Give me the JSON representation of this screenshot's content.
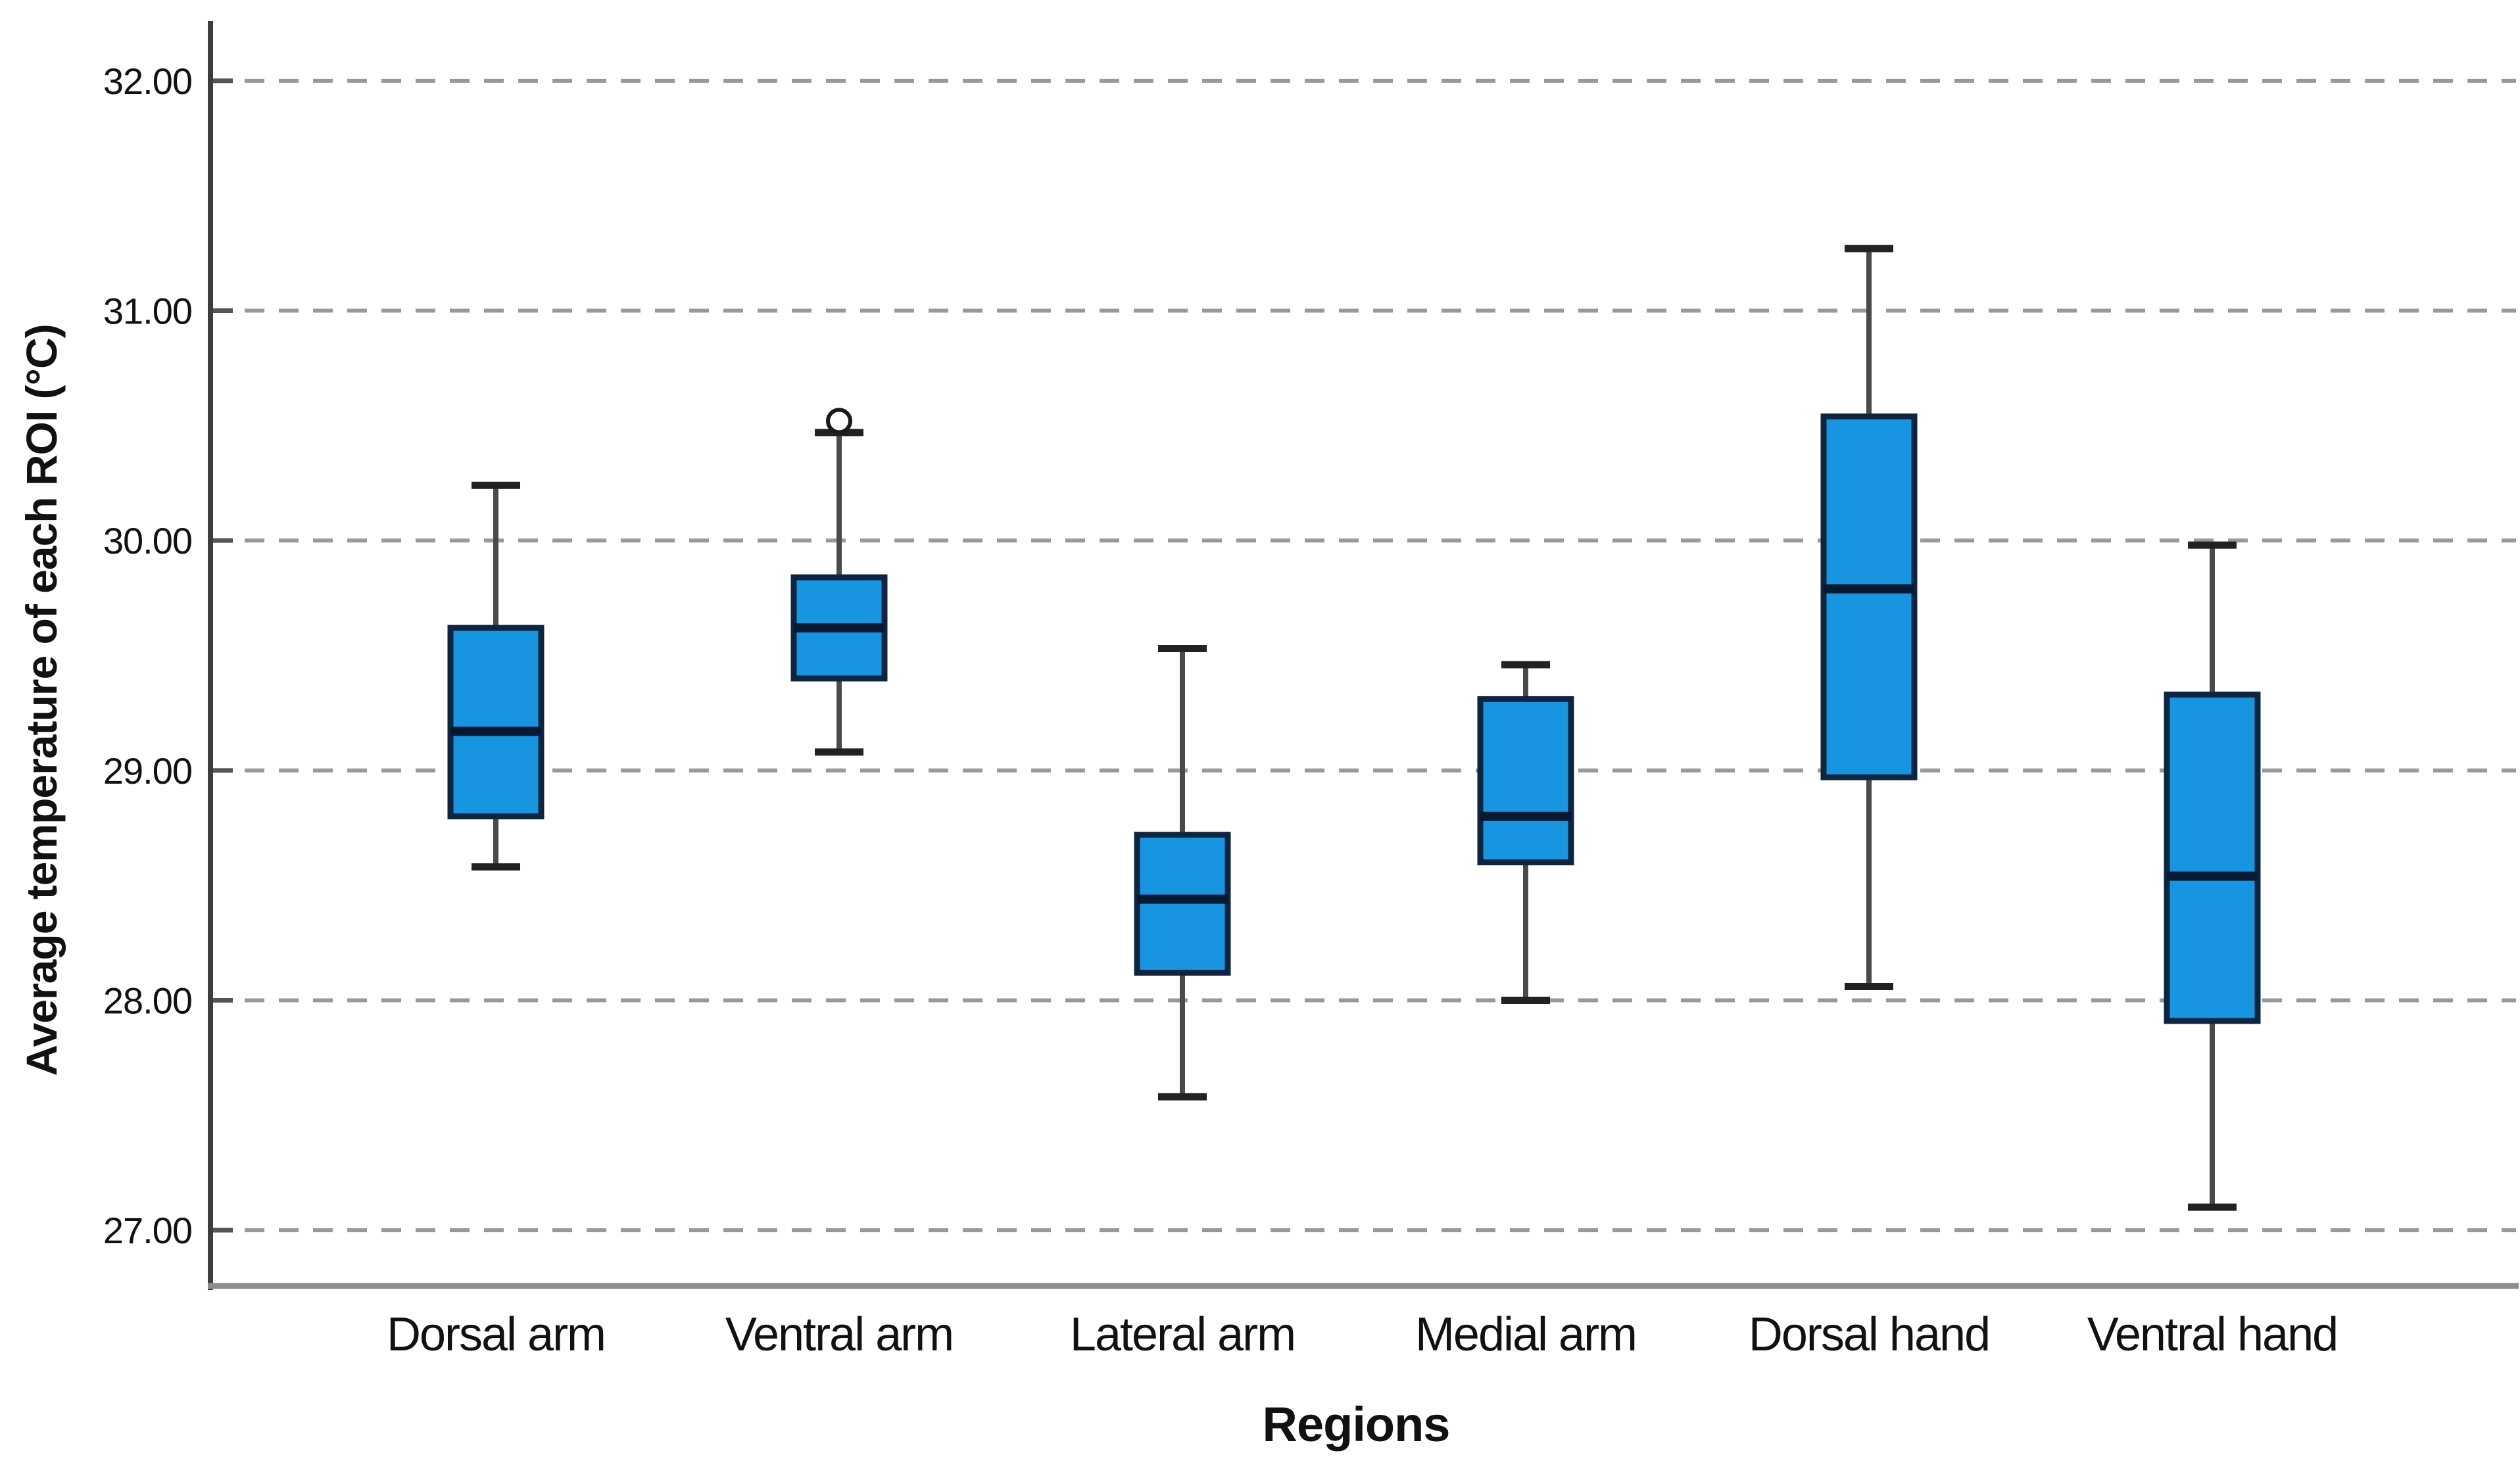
{
  "figure": {
    "background": "#ffffff"
  },
  "chart_data": {
    "type": "boxplot",
    "title": "",
    "xlabel": "Regions",
    "ylabel": "Average temperature of each ROI (°C)",
    "ylim": [
      26.76,
      32.26
    ],
    "grid": "horizontal-dashed",
    "legend": "none",
    "y_ticks": [
      {
        "value": 32.0,
        "label": "32.00"
      },
      {
        "value": 31.0,
        "label": "31.00"
      },
      {
        "value": 30.0,
        "label": "30.00"
      },
      {
        "value": 29.0,
        "label": "29.00"
      },
      {
        "value": 28.0,
        "label": "28.00"
      },
      {
        "value": 27.0,
        "label": "27.00"
      }
    ],
    "categories": [
      "Dorsal arm",
      "Ventral arm",
      "Lateral arm",
      "Medial arm",
      "Dorsal hand",
      "Ventral hand"
    ],
    "series": [
      {
        "name": "Dorsal arm",
        "whisker_low": 28.58,
        "q1": 28.8,
        "median": 29.17,
        "q3": 29.62,
        "whisker_high": 30.24,
        "outliers": []
      },
      {
        "name": "Ventral arm",
        "whisker_low": 29.08,
        "q1": 29.4,
        "median": 29.62,
        "q3": 29.84,
        "whisker_high": 30.47,
        "outliers": [
          30.52
        ]
      },
      {
        "name": "Lateral arm",
        "whisker_low": 27.58,
        "q1": 28.12,
        "median": 28.44,
        "q3": 28.72,
        "whisker_high": 29.53,
        "outliers": []
      },
      {
        "name": "Medial arm",
        "whisker_low": 28.0,
        "q1": 28.6,
        "median": 28.8,
        "q3": 29.31,
        "whisker_high": 29.46,
        "outliers": []
      },
      {
        "name": "Dorsal hand",
        "whisker_low": 28.06,
        "q1": 28.97,
        "median": 29.79,
        "q3": 30.54,
        "whisker_high": 31.27,
        "outliers": []
      },
      {
        "name": "Ventral hand",
        "whisker_low": 27.1,
        "q1": 27.91,
        "median": 28.54,
        "q3": 29.33,
        "whisker_high": 29.98,
        "outliers": []
      }
    ],
    "colors": {
      "box_fill": "#1895e0",
      "box_border": "#0d2540",
      "median": "#081a33",
      "whisker": "#4a4a4a",
      "whisker_cap": "#222222",
      "outlier_stroke": "#1a1a1a",
      "outlier_fill": "#ffffff",
      "grid": "#999999",
      "tick_mark": "#555555",
      "y_axis": "#3d3d3d",
      "x_axis": "#8c8c8c",
      "text": "#111111"
    }
  }
}
